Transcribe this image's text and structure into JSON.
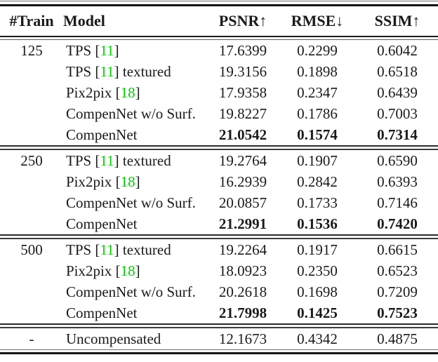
{
  "colors": {
    "citation_green": "#00cc00",
    "text": "#1a1a1a",
    "rule_black": "#141414",
    "background": "#ffffff"
  },
  "table": {
    "headers": {
      "train": "#Train",
      "model": "Model",
      "psnr": "PSNR↑",
      "rmse": "RMSE↓",
      "ssim": "SSIM↑"
    },
    "groups": [
      {
        "train": "125",
        "rows": [
          {
            "model_pre": "TPS [",
            "model_cite": "11",
            "model_post": "]",
            "psnr": "17.6399",
            "rmse": "0.2299",
            "ssim": "0.6042",
            "bold": false
          },
          {
            "model_pre": "TPS [",
            "model_cite": "11",
            "model_post": "] textured",
            "psnr": "19.3156",
            "rmse": "0.1898",
            "ssim": "0.6518",
            "bold": false
          },
          {
            "model_pre": "Pix2pix [",
            "model_cite": "18",
            "model_post": "]",
            "psnr": "17.9358",
            "rmse": "0.2347",
            "ssim": "0.6439",
            "bold": false
          },
          {
            "model_pre": "CompenNet w/o Surf.",
            "model_cite": "",
            "model_post": "",
            "psnr": "19.8227",
            "rmse": "0.1786",
            "ssim": "0.7003",
            "bold": false
          },
          {
            "model_pre": "CompenNet",
            "model_cite": "",
            "model_post": "",
            "psnr": "21.0542",
            "rmse": "0.1574",
            "ssim": "0.7314",
            "bold": true
          }
        ]
      },
      {
        "train": "250",
        "rows": [
          {
            "model_pre": "TPS [",
            "model_cite": "11",
            "model_post": "] textured",
            "psnr": "19.2764",
            "rmse": "0.1907",
            "ssim": "0.6590",
            "bold": false
          },
          {
            "model_pre": "Pix2pix [",
            "model_cite": "18",
            "model_post": "]",
            "psnr": "16.2939",
            "rmse": "0.2842",
            "ssim": "0.6393",
            "bold": false
          },
          {
            "model_pre": "CompenNet w/o Surf.",
            "model_cite": "",
            "model_post": "",
            "psnr": "20.0857",
            "rmse": "0.1733",
            "ssim": "0.7146",
            "bold": false
          },
          {
            "model_pre": "CompenNet",
            "model_cite": "",
            "model_post": "",
            "psnr": "21.2991",
            "rmse": "0.1536",
            "ssim": "0.7420",
            "bold": true
          }
        ]
      },
      {
        "train": "500",
        "rows": [
          {
            "model_pre": "TPS [",
            "model_cite": "11",
            "model_post": "] textured",
            "psnr": "19.2264",
            "rmse": "0.1917",
            "ssim": "0.6615",
            "bold": false
          },
          {
            "model_pre": "Pix2pix [",
            "model_cite": "18",
            "model_post": "]",
            "psnr": "18.0923",
            "rmse": "0.2350",
            "ssim": "0.6523",
            "bold": false
          },
          {
            "model_pre": "CompenNet w/o Surf.",
            "model_cite": "",
            "model_post": "",
            "psnr": "20.2618",
            "rmse": "0.1698",
            "ssim": "0.7209",
            "bold": false
          },
          {
            "model_pre": "CompenNet",
            "model_cite": "",
            "model_post": "",
            "psnr": "21.7998",
            "rmse": "0.1425",
            "ssim": "0.7523",
            "bold": true
          }
        ]
      }
    ],
    "footer": {
      "train": "-",
      "model": "Uncompensated",
      "psnr": "12.1673",
      "rmse": "0.4342",
      "ssim": "0.4875"
    }
  }
}
